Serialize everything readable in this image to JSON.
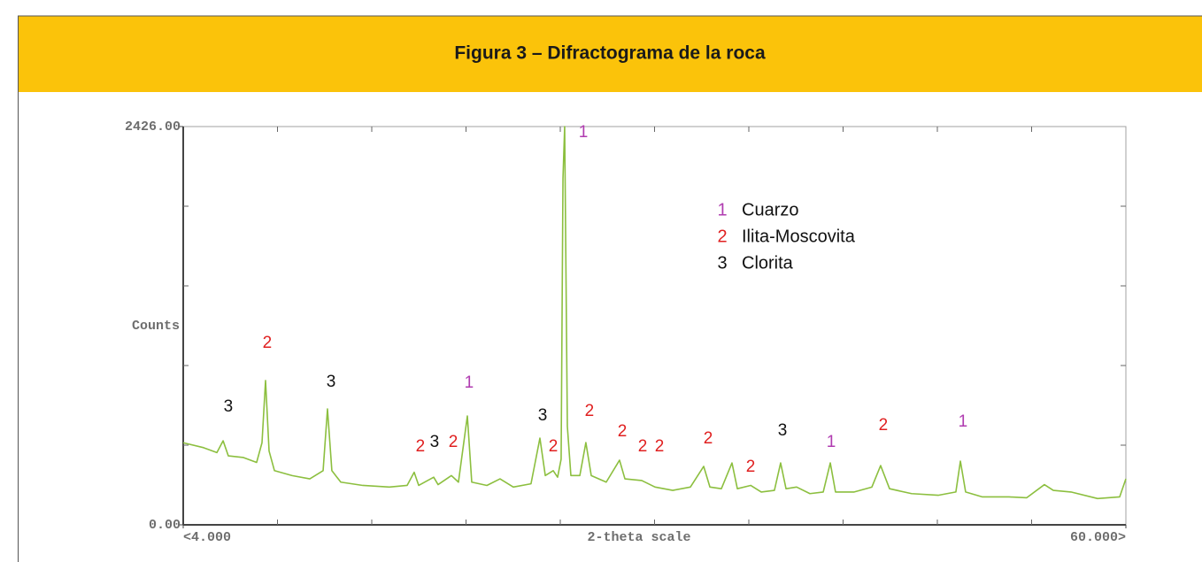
{
  "chart_data": {
    "type": "line",
    "title": "Figura 3 – Difractograma de la roca",
    "x_label": "2-theta scale",
    "y_label": "Counts",
    "xlim": [
      4,
      60
    ],
    "ylim": [
      0,
      2426
    ],
    "xticks": [
      {
        "value": 4,
        "label": "<4.000"
      },
      {
        "value": 60,
        "label": "60.000>"
      }
    ],
    "yticks": [
      {
        "value": 0,
        "label": "0.00"
      },
      {
        "value": 2426,
        "label": "2426.00"
      }
    ],
    "xticks_minor": [
      9.6,
      15.2,
      20.8,
      26.4,
      32,
      37.6,
      43.2,
      48.8,
      54.4
    ],
    "yticks_minor": [
      485.2,
      970.4,
      1455.6,
      1940.8
    ],
    "grid": false,
    "series": [
      {
        "color": "#8cbf3f",
        "x": [
          4.0,
          5.21,
          6.0,
          6.37,
          6.68,
          7.58,
          8.36,
          8.68,
          8.89,
          9.1,
          9.42,
          10.47,
          11.52,
          12.31,
          12.57,
          12.83,
          13.36,
          14.67,
          16.25,
          17.3,
          17.72,
          17.99,
          18.88,
          19.14,
          19.93,
          20.35,
          20.88,
          21.14,
          22.04,
          22.82,
          23.61,
          24.66,
          25.19,
          25.51,
          25.98,
          26.24,
          26.45,
          26.56,
          26.66,
          26.82,
          27.03,
          27.56,
          27.92,
          28.24,
          29.13,
          29.92,
          30.24,
          31.24,
          32.03,
          33.08,
          34.13,
          34.92,
          35.29,
          35.97,
          36.6,
          36.92,
          37.71,
          38.34,
          39.12,
          39.49,
          39.81,
          40.44,
          41.23,
          42.02,
          42.44,
          42.75,
          43.86,
          44.91,
          45.43,
          45.96,
          47.27,
          48.85,
          49.9,
          50.17,
          50.48,
          51.48,
          53.06,
          54.11,
          55.16,
          55.69,
          56.74,
          58.32,
          59.63,
          60.0
        ],
        "values": [
          500,
          470,
          440,
          512,
          420,
          410,
          380,
          500,
          879,
          450,
          330,
          300,
          280,
          330,
          706,
          330,
          260,
          240,
          230,
          240,
          320,
          240,
          290,
          245,
          300,
          260,
          663,
          260,
          240,
          280,
          230,
          250,
          528,
          300,
          330,
          290,
          400,
          2110,
          2426,
          600,
          300,
          300,
          501,
          300,
          260,
          394,
          280,
          270,
          230,
          210,
          230,
          356,
          230,
          220,
          377,
          220,
          240,
          200,
          210,
          377,
          220,
          230,
          190,
          200,
          377,
          200,
          200,
          230,
          361,
          220,
          190,
          180,
          200,
          388,
          200,
          170,
          170,
          165,
          245,
          210,
          200,
          160,
          170,
          280
        ]
      }
    ],
    "legend": [
      {
        "key": "1",
        "label": "Cuarzo",
        "color": "#b03cb0"
      },
      {
        "key": "2",
        "label": "Ilita-Moscovita",
        "color": "#e02020"
      },
      {
        "key": "3",
        "label": "Clorita",
        "color": "#111111"
      }
    ],
    "annotations": [
      {
        "text": "3",
        "x": 6.68,
        "y": 717,
        "color": "#111111"
      },
      {
        "text": "2",
        "x": 8.99,
        "y": 1105,
        "color": "#e02020"
      },
      {
        "text": "3",
        "x": 12.78,
        "y": 868,
        "color": "#111111"
      },
      {
        "text": "1",
        "x": 20.98,
        "y": 863,
        "color": "#b03cb0"
      },
      {
        "text": "2",
        "x": 18.09,
        "y": 474,
        "color": "#e02020"
      },
      {
        "text": "3",
        "x": 18.93,
        "y": 501,
        "color": "#111111"
      },
      {
        "text": "2",
        "x": 20.04,
        "y": 501,
        "color": "#e02020"
      },
      {
        "text": "3",
        "x": 25.35,
        "y": 663,
        "color": "#111111"
      },
      {
        "text": "2",
        "x": 25.98,
        "y": 474,
        "color": "#e02020"
      },
      {
        "text": "1",
        "x": 27.77,
        "y": 2388,
        "color": "#b03cb0"
      },
      {
        "text": "2",
        "x": 28.13,
        "y": 690,
        "color": "#e02020"
      },
      {
        "text": "2",
        "x": 30.08,
        "y": 566,
        "color": "#e02020"
      },
      {
        "text": "2",
        "x": 31.29,
        "y": 474,
        "color": "#e02020"
      },
      {
        "text": "2",
        "x": 32.29,
        "y": 474,
        "color": "#e02020"
      },
      {
        "text": "2",
        "x": 35.18,
        "y": 523,
        "color": "#e02020"
      },
      {
        "text": "2",
        "x": 37.71,
        "y": 350,
        "color": "#e02020"
      },
      {
        "text": "3",
        "x": 39.6,
        "y": 571,
        "color": "#111111"
      },
      {
        "text": "1",
        "x": 42.49,
        "y": 501,
        "color": "#b03cb0"
      },
      {
        "text": "2",
        "x": 45.59,
        "y": 604,
        "color": "#e02020"
      },
      {
        "text": "1",
        "x": 50.32,
        "y": 625,
        "color": "#b03cb0"
      }
    ]
  }
}
